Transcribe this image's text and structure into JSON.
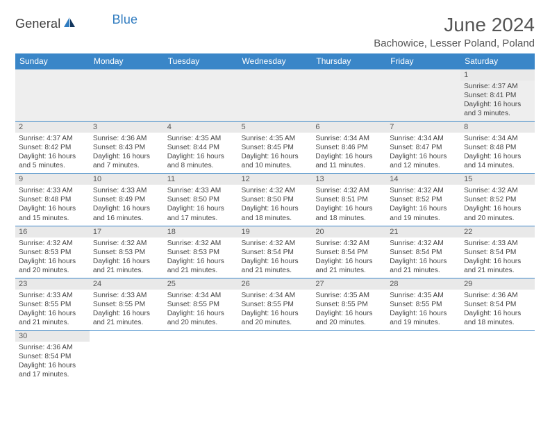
{
  "brand": {
    "name_part1": "General",
    "name_part2": "Blue"
  },
  "title": "June 2024",
  "location": "Bachowice, Lesser Poland, Poland",
  "colors": {
    "header_bg": "#3a86c8",
    "header_text": "#ffffff",
    "daynum_bg": "#e9e9e9",
    "border": "#3a86c8",
    "text": "#444444",
    "title_text": "#555555"
  },
  "weekdays": [
    "Sunday",
    "Monday",
    "Tuesday",
    "Wednesday",
    "Thursday",
    "Friday",
    "Saturday"
  ],
  "weeks": [
    [
      {
        "empty": true
      },
      {
        "empty": true
      },
      {
        "empty": true
      },
      {
        "empty": true
      },
      {
        "empty": true
      },
      {
        "empty": true
      },
      {
        "n": "1",
        "sunrise": "Sunrise: 4:37 AM",
        "sunset": "Sunset: 8:41 PM",
        "daylight": "Daylight: 16 hours and 3 minutes."
      }
    ],
    [
      {
        "n": "2",
        "sunrise": "Sunrise: 4:37 AM",
        "sunset": "Sunset: 8:42 PM",
        "daylight": "Daylight: 16 hours and 5 minutes."
      },
      {
        "n": "3",
        "sunrise": "Sunrise: 4:36 AM",
        "sunset": "Sunset: 8:43 PM",
        "daylight": "Daylight: 16 hours and 7 minutes."
      },
      {
        "n": "4",
        "sunrise": "Sunrise: 4:35 AM",
        "sunset": "Sunset: 8:44 PM",
        "daylight": "Daylight: 16 hours and 8 minutes."
      },
      {
        "n": "5",
        "sunrise": "Sunrise: 4:35 AM",
        "sunset": "Sunset: 8:45 PM",
        "daylight": "Daylight: 16 hours and 10 minutes."
      },
      {
        "n": "6",
        "sunrise": "Sunrise: 4:34 AM",
        "sunset": "Sunset: 8:46 PM",
        "daylight": "Daylight: 16 hours and 11 minutes."
      },
      {
        "n": "7",
        "sunrise": "Sunrise: 4:34 AM",
        "sunset": "Sunset: 8:47 PM",
        "daylight": "Daylight: 16 hours and 12 minutes."
      },
      {
        "n": "8",
        "sunrise": "Sunrise: 4:34 AM",
        "sunset": "Sunset: 8:48 PM",
        "daylight": "Daylight: 16 hours and 14 minutes."
      }
    ],
    [
      {
        "n": "9",
        "sunrise": "Sunrise: 4:33 AM",
        "sunset": "Sunset: 8:48 PM",
        "daylight": "Daylight: 16 hours and 15 minutes."
      },
      {
        "n": "10",
        "sunrise": "Sunrise: 4:33 AM",
        "sunset": "Sunset: 8:49 PM",
        "daylight": "Daylight: 16 hours and 16 minutes."
      },
      {
        "n": "11",
        "sunrise": "Sunrise: 4:33 AM",
        "sunset": "Sunset: 8:50 PM",
        "daylight": "Daylight: 16 hours and 17 minutes."
      },
      {
        "n": "12",
        "sunrise": "Sunrise: 4:32 AM",
        "sunset": "Sunset: 8:50 PM",
        "daylight": "Daylight: 16 hours and 18 minutes."
      },
      {
        "n": "13",
        "sunrise": "Sunrise: 4:32 AM",
        "sunset": "Sunset: 8:51 PM",
        "daylight": "Daylight: 16 hours and 18 minutes."
      },
      {
        "n": "14",
        "sunrise": "Sunrise: 4:32 AM",
        "sunset": "Sunset: 8:52 PM",
        "daylight": "Daylight: 16 hours and 19 minutes."
      },
      {
        "n": "15",
        "sunrise": "Sunrise: 4:32 AM",
        "sunset": "Sunset: 8:52 PM",
        "daylight": "Daylight: 16 hours and 20 minutes."
      }
    ],
    [
      {
        "n": "16",
        "sunrise": "Sunrise: 4:32 AM",
        "sunset": "Sunset: 8:53 PM",
        "daylight": "Daylight: 16 hours and 20 minutes."
      },
      {
        "n": "17",
        "sunrise": "Sunrise: 4:32 AM",
        "sunset": "Sunset: 8:53 PM",
        "daylight": "Daylight: 16 hours and 21 minutes."
      },
      {
        "n": "18",
        "sunrise": "Sunrise: 4:32 AM",
        "sunset": "Sunset: 8:53 PM",
        "daylight": "Daylight: 16 hours and 21 minutes."
      },
      {
        "n": "19",
        "sunrise": "Sunrise: 4:32 AM",
        "sunset": "Sunset: 8:54 PM",
        "daylight": "Daylight: 16 hours and 21 minutes."
      },
      {
        "n": "20",
        "sunrise": "Sunrise: 4:32 AM",
        "sunset": "Sunset: 8:54 PM",
        "daylight": "Daylight: 16 hours and 21 minutes."
      },
      {
        "n": "21",
        "sunrise": "Sunrise: 4:32 AM",
        "sunset": "Sunset: 8:54 PM",
        "daylight": "Daylight: 16 hours and 21 minutes."
      },
      {
        "n": "22",
        "sunrise": "Sunrise: 4:33 AM",
        "sunset": "Sunset: 8:54 PM",
        "daylight": "Daylight: 16 hours and 21 minutes."
      }
    ],
    [
      {
        "n": "23",
        "sunrise": "Sunrise: 4:33 AM",
        "sunset": "Sunset: 8:55 PM",
        "daylight": "Daylight: 16 hours and 21 minutes."
      },
      {
        "n": "24",
        "sunrise": "Sunrise: 4:33 AM",
        "sunset": "Sunset: 8:55 PM",
        "daylight": "Daylight: 16 hours and 21 minutes."
      },
      {
        "n": "25",
        "sunrise": "Sunrise: 4:34 AM",
        "sunset": "Sunset: 8:55 PM",
        "daylight": "Daylight: 16 hours and 20 minutes."
      },
      {
        "n": "26",
        "sunrise": "Sunrise: 4:34 AM",
        "sunset": "Sunset: 8:55 PM",
        "daylight": "Daylight: 16 hours and 20 minutes."
      },
      {
        "n": "27",
        "sunrise": "Sunrise: 4:35 AM",
        "sunset": "Sunset: 8:55 PM",
        "daylight": "Daylight: 16 hours and 20 minutes."
      },
      {
        "n": "28",
        "sunrise": "Sunrise: 4:35 AM",
        "sunset": "Sunset: 8:55 PM",
        "daylight": "Daylight: 16 hours and 19 minutes."
      },
      {
        "n": "29",
        "sunrise": "Sunrise: 4:36 AM",
        "sunset": "Sunset: 8:54 PM",
        "daylight": "Daylight: 16 hours and 18 minutes."
      }
    ],
    [
      {
        "n": "30",
        "sunrise": "Sunrise: 4:36 AM",
        "sunset": "Sunset: 8:54 PM",
        "daylight": "Daylight: 16 hours and 17 minutes."
      },
      {
        "empty": true
      },
      {
        "empty": true
      },
      {
        "empty": true
      },
      {
        "empty": true
      },
      {
        "empty": true
      },
      {
        "empty": true
      }
    ]
  ]
}
